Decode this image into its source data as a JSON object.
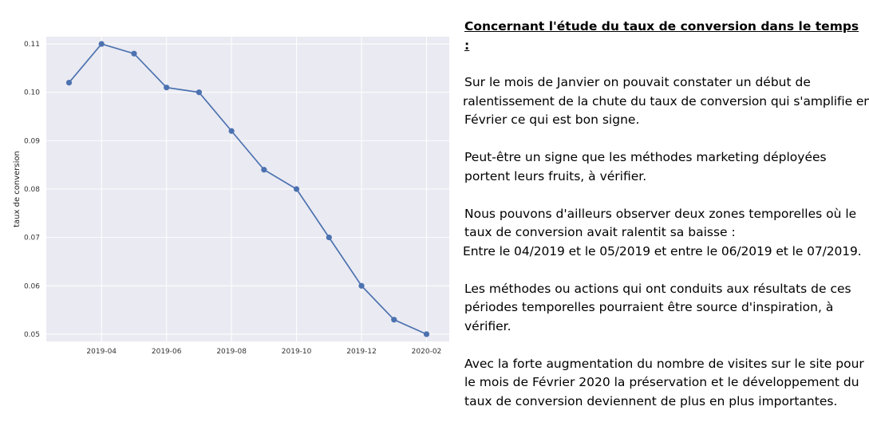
{
  "chart_data": {
    "type": "line",
    "title": "",
    "xlabel": "",
    "ylabel": "taux de conversion",
    "x": [
      "2019-03",
      "2019-04",
      "2019-05",
      "2019-06",
      "2019-07",
      "2019-08",
      "2019-09",
      "2019-10",
      "2019-11",
      "2019-12",
      "2020-01",
      "2020-02"
    ],
    "values": [
      0.102,
      0.11,
      0.108,
      0.101,
      0.1,
      0.092,
      0.084,
      0.08,
      0.07,
      0.06,
      0.053,
      0.05
    ],
    "x_ticks": [
      "2019-04",
      "2019-06",
      "2019-08",
      "2019-10",
      "2019-12",
      "2020-02"
    ],
    "y_ticks": [
      "0.05",
      "0.06",
      "0.07",
      "0.08",
      "0.09",
      "0.10",
      "0.11"
    ],
    "ylim": [
      0.0485,
      0.1115
    ],
    "grid": true,
    "colors": {
      "line": "#4c72b0",
      "background": "#eaeaf2",
      "grid": "#ffffff"
    }
  },
  "text_panel": {
    "heading": "Concernant l'étude du taux de conversion dans le temps :",
    "paragraphs": [
      [
        "Sur le mois de Janvier on pouvait constater un début de",
        "ralentissement de la chute du taux de conversion qui s'amplifie en",
        "Février ce qui est bon signe."
      ],
      [
        "Peut-être un signe que les méthodes marketing déployées",
        "portent leurs fruits, à vérifier."
      ],
      [
        "Nous pouvons d'ailleurs observer deux zones temporelles où le",
        "taux de conversion avait ralentit sa baisse :",
        "Entre le 04/2019 et le 05/2019 et entre le 06/2019 et le 07/2019."
      ],
      [
        "Les méthodes ou actions qui ont conduits aux résultats de ces",
        "périodes temporelles pourraient être source d'inspiration, à",
        "vérifier."
      ],
      [
        "Avec la forte augmentation du nombre de visites sur le site pour",
        "le mois de Février 2020 la préservation et le développement du",
        "taux de conversion deviennent de plus en plus importantes."
      ]
    ]
  }
}
